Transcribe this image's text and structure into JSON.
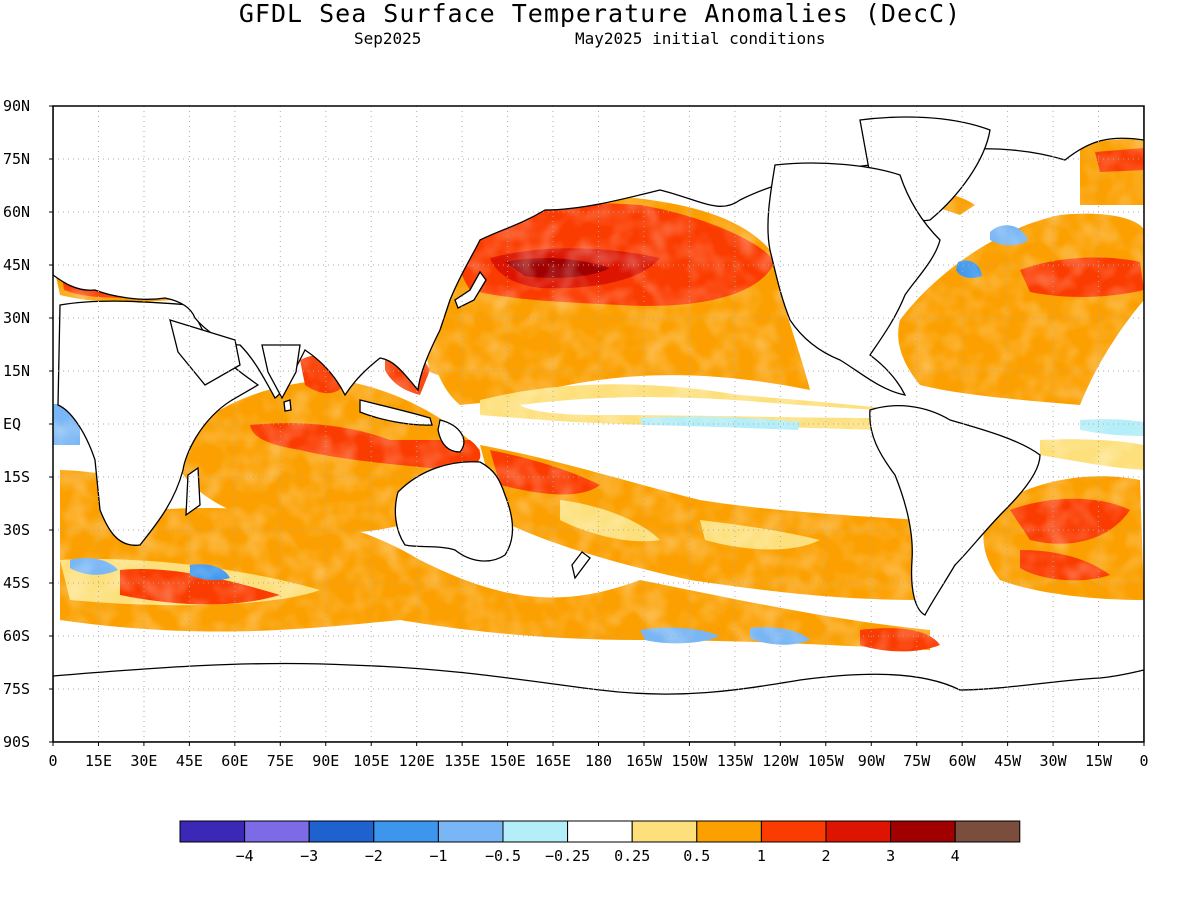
{
  "header": {
    "title": "GFDL Sea Surface Temperature Anomalies (DecC)",
    "valid_month": "Sep2025",
    "init_label": "May2025 initial conditions"
  },
  "map": {
    "lat_labels": [
      "90N",
      "75N",
      "60N",
      "45N",
      "30N",
      "15N",
      "EQ",
      "15S",
      "30S",
      "45S",
      "60S",
      "75S",
      "90S"
    ],
    "lon_labels": [
      "0",
      "15E",
      "30E",
      "45E",
      "60E",
      "75E",
      "90E",
      "105E",
      "120E",
      "135E",
      "150E",
      "165E",
      "180",
      "165W",
      "150W",
      "135W",
      "120W",
      "105W",
      "90W",
      "75W",
      "60W",
      "45W",
      "30W",
      "15W",
      "0"
    ],
    "grid": "dotted",
    "lat_range": [
      -90,
      90
    ],
    "lon_range": [
      0,
      360
    ]
  },
  "colorbar": {
    "colors": [
      "#3b28b6",
      "#7d6ae6",
      "#1e62cf",
      "#3c96ee",
      "#78b6f5",
      "#b4eef8",
      "#ffffff",
      "#fde07c",
      "#fba000",
      "#fb3c00",
      "#dc1400",
      "#a00000",
      "#7a4d3c"
    ],
    "labels": [
      "-4",
      "-3",
      "-2",
      "-1",
      "-0.5",
      "-0.25",
      "0.25",
      "0.5",
      "1",
      "2",
      "3",
      "4"
    ]
  }
}
